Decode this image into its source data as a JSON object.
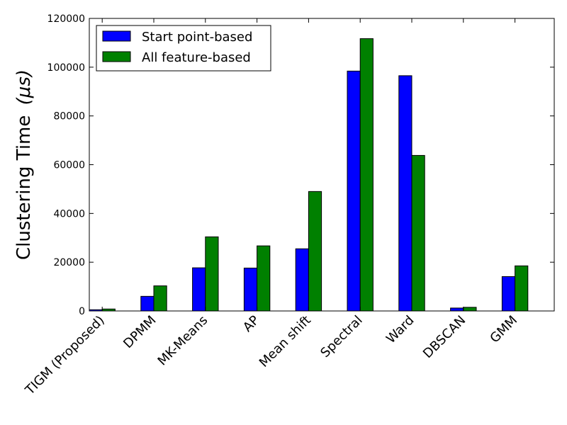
{
  "chart_data": {
    "type": "bar",
    "title": "",
    "xlabel": "",
    "ylabel": "Clustering Time",
    "ylabel_unit": "(μs)",
    "ylim": [
      0,
      120000
    ],
    "yticks": [
      "0",
      "20000",
      "40000",
      "60000",
      "80000",
      "100000",
      "120000"
    ],
    "grid": false,
    "legend_position": "top-left",
    "categories": [
      "TIGM (Proposed)",
      "DPMM",
      "MK-Means",
      "AP",
      "Mean shift",
      "Spectral",
      "Ward",
      "DBSCAN",
      "GMM"
    ],
    "series": [
      {
        "name": "Start point-based",
        "color": "#0000ff",
        "values": [
          500,
          6000,
          17700,
          17600,
          25500,
          98400,
          96500,
          1200,
          14100
        ]
      },
      {
        "name": "All feature-based",
        "color": "#008000",
        "values": [
          800,
          10300,
          30400,
          26700,
          49000,
          111700,
          63800,
          1500,
          18500
        ]
      }
    ]
  }
}
